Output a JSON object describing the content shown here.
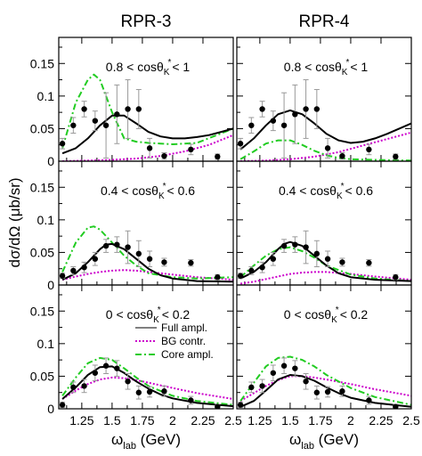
{
  "figure": {
    "column_titles": [
      "RPR-3",
      "RPR-4"
    ],
    "ylabel": "dσ/dΩ (μb/sr)",
    "xlabel_main": "ω",
    "xlabel_sub": "lab",
    "xlabel_unit": " (GeV)",
    "x_tick_labels": [
      "1.25",
      "1.5",
      "1.75",
      "2",
      "2.25",
      "2.5"
    ],
    "y_tick_labels": [
      [
        "0",
        "0.05",
        "0.1",
        "0.15"
      ],
      [
        "0",
        "0.05",
        "0.1",
        "0.15"
      ],
      [
        "0",
        "0.05",
        "0.1",
        "0.15"
      ]
    ],
    "row_labels": [
      {
        "prefix": "0.8 < cosθ",
        "sub": "K",
        "sup": "*",
        "suffix": "< 1"
      },
      {
        "prefix": "0.4 < cosθ",
        "sub": "K",
        "sup": "*",
        "suffix": "< 0.6"
      },
      {
        "prefix": "0 < cosθ",
        "sub": "K",
        "sup": "*",
        "suffix": "< 0.2"
      }
    ],
    "legend": [
      "Full ampl.",
      "BG contr.",
      "Core ampl."
    ],
    "colors": {
      "full": "#000000",
      "bg": "#cc00cc",
      "core": "#22cc22",
      "data": "#000000",
      "errorbar": "#999999"
    }
  },
  "chart_data": {
    "type": "line",
    "x_range": [
      1.06,
      2.5
    ],
    "y_range": [
      0,
      0.19
    ],
    "data_points": [
      {
        "x": [
          1.09,
          1.18,
          1.27,
          1.36,
          1.45,
          1.54,
          1.63,
          1.72,
          1.81,
          1.93,
          2.15,
          2.37
        ],
        "y": [
          0.027,
          0.055,
          0.08,
          0.062,
          0.055,
          0.072,
          0.08,
          0.08,
          0.02,
          0.008,
          0.018,
          0.007
        ],
        "err": [
          0.008,
          0.012,
          0.012,
          0.015,
          0.05,
          0.045,
          0.045,
          0.03,
          0.015,
          0.005,
          0.008,
          0.004
        ]
      },
      {
        "x": [
          1.09,
          1.18,
          1.27,
          1.36,
          1.45,
          1.54,
          1.63,
          1.72,
          1.81,
          1.93,
          2.15,
          2.37
        ],
        "y": [
          0.014,
          0.022,
          0.027,
          0.04,
          0.06,
          0.062,
          0.058,
          0.048,
          0.04,
          0.035,
          0.034,
          0.012
        ],
        "err": [
          0.004,
          0.006,
          0.008,
          0.01,
          0.01,
          0.012,
          0.025,
          0.02,
          0.012,
          0.006,
          0.005,
          0.004
        ]
      },
      {
        "x": [
          1.09,
          1.18,
          1.27,
          1.36,
          1.45,
          1.54,
          1.63,
          1.72,
          1.81,
          1.93,
          2.15,
          2.37
        ],
        "y": [
          0.006,
          0.033,
          0.035,
          0.055,
          0.066,
          0.062,
          0.042,
          0.025,
          0.026,
          0.027,
          0.013,
          0.003
        ],
        "err": [
          0.004,
          0.008,
          0.01,
          0.012,
          0.012,
          0.012,
          0.012,
          0.01,
          0.008,
          0.008,
          0.006,
          0.004
        ]
      }
    ],
    "model_curves": [
      [
        {
          "name": "Full ampl.",
          "x": [
            1.09,
            1.2,
            1.3,
            1.4,
            1.5,
            1.6,
            1.7,
            1.8,
            1.9,
            2.0,
            2.1,
            2.2,
            2.3,
            2.4,
            2.5
          ],
          "y": [
            0.012,
            0.02,
            0.035,
            0.055,
            0.07,
            0.07,
            0.058,
            0.045,
            0.038,
            0.035,
            0.035,
            0.037,
            0.04,
            0.045,
            0.05
          ]
        },
        {
          "name": "BG contr.",
          "x": [
            1.09,
            1.3,
            1.5,
            1.7,
            1.9,
            2.1,
            2.3,
            2.5
          ],
          "y": [
            0.0,
            0.001,
            0.002,
            0.004,
            0.008,
            0.015,
            0.025,
            0.04
          ]
        },
        {
          "name": "Core ampl.",
          "x": [
            1.09,
            1.2,
            1.3,
            1.35,
            1.4,
            1.5,
            1.6,
            1.7,
            1.8,
            1.9,
            2.0,
            2.2,
            2.5
          ],
          "y": [
            0.02,
            0.09,
            0.125,
            0.133,
            0.125,
            0.075,
            0.035,
            0.03,
            0.028,
            0.027,
            0.026,
            0.028,
            0.05
          ]
        }
      ],
      [
        {
          "name": "Full ampl.",
          "x": [
            1.09,
            1.2,
            1.3,
            1.4,
            1.45,
            1.5,
            1.6,
            1.7,
            1.8,
            1.9,
            2.0,
            2.2,
            2.5
          ],
          "y": [
            0.008,
            0.018,
            0.035,
            0.055,
            0.062,
            0.063,
            0.055,
            0.04,
            0.025,
            0.015,
            0.01,
            0.006,
            0.005
          ]
        },
        {
          "name": "BG contr.",
          "x": [
            1.09,
            1.2,
            1.3,
            1.4,
            1.5,
            1.6,
            1.7,
            1.8,
            2.0,
            2.2,
            2.5
          ],
          "y": [
            0.008,
            0.013,
            0.017,
            0.02,
            0.022,
            0.023,
            0.022,
            0.02,
            0.016,
            0.012,
            0.008
          ]
        },
        {
          "name": "Core ampl.",
          "x": [
            1.09,
            1.2,
            1.3,
            1.35,
            1.4,
            1.5,
            1.6,
            1.7,
            1.8,
            2.0,
            2.2,
            2.5
          ],
          "y": [
            0.02,
            0.065,
            0.088,
            0.09,
            0.085,
            0.065,
            0.045,
            0.03,
            0.018,
            0.012,
            0.01,
            0.012
          ]
        }
      ],
      [
        {
          "name": "Full ampl.",
          "x": [
            1.09,
            1.2,
            1.3,
            1.4,
            1.5,
            1.6,
            1.7,
            1.8,
            1.9,
            2.0,
            2.2,
            2.5
          ],
          "y": [
            0.015,
            0.033,
            0.052,
            0.064,
            0.065,
            0.055,
            0.042,
            0.031,
            0.022,
            0.016,
            0.009,
            0.004
          ]
        },
        {
          "name": "BG contr.",
          "x": [
            1.09,
            1.2,
            1.3,
            1.4,
            1.5,
            1.6,
            1.7,
            1.8,
            2.0,
            2.2,
            2.5
          ],
          "y": [
            0.015,
            0.028,
            0.038,
            0.045,
            0.048,
            0.047,
            0.044,
            0.04,
            0.032,
            0.024,
            0.015
          ]
        },
        {
          "name": "Core ampl.",
          "x": [
            1.09,
            1.2,
            1.3,
            1.4,
            1.5,
            1.6,
            1.7,
            1.8,
            2.0,
            2.2,
            2.5
          ],
          "y": [
            0.02,
            0.048,
            0.07,
            0.078,
            0.075,
            0.062,
            0.048,
            0.035,
            0.02,
            0.012,
            0.006
          ]
        }
      ],
      [
        {
          "name": "Full ampl.",
          "x": [
            1.09,
            1.2,
            1.3,
            1.4,
            1.5,
            1.6,
            1.7,
            1.8,
            1.9,
            2.0,
            2.1,
            2.2,
            2.3,
            2.4,
            2.5
          ],
          "y": [
            0.018,
            0.035,
            0.055,
            0.072,
            0.078,
            0.072,
            0.058,
            0.042,
            0.032,
            0.028,
            0.03,
            0.035,
            0.042,
            0.05,
            0.058
          ]
        },
        {
          "name": "BG contr.",
          "x": [
            1.09,
            1.3,
            1.5,
            1.7,
            1.9,
            2.1,
            2.3,
            2.5
          ],
          "y": [
            0.0,
            0.001,
            0.003,
            0.007,
            0.014,
            0.024,
            0.034,
            0.044
          ]
        },
        {
          "name": "Core ampl.",
          "x": [
            1.09,
            1.2,
            1.3,
            1.4,
            1.5,
            1.6,
            1.7,
            1.8,
            1.9,
            2.0,
            2.2,
            2.5
          ],
          "y": [
            0.003,
            0.015,
            0.027,
            0.032,
            0.032,
            0.025,
            0.016,
            0.009,
            0.005,
            0.003,
            0.002,
            0.001
          ]
        }
      ],
      [
        {
          "name": "Full ampl.",
          "x": [
            1.09,
            1.2,
            1.3,
            1.4,
            1.45,
            1.5,
            1.6,
            1.7,
            1.8,
            1.9,
            2.0,
            2.2,
            2.5
          ],
          "y": [
            0.01,
            0.02,
            0.035,
            0.055,
            0.063,
            0.066,
            0.06,
            0.045,
            0.03,
            0.018,
            0.012,
            0.008,
            0.006
          ]
        },
        {
          "name": "BG contr.",
          "x": [
            1.09,
            1.2,
            1.3,
            1.4,
            1.5,
            1.6,
            1.7,
            1.8,
            2.0,
            2.2,
            2.5
          ],
          "y": [
            0.002,
            0.005,
            0.009,
            0.013,
            0.017,
            0.019,
            0.02,
            0.02,
            0.017,
            0.013,
            0.008
          ]
        },
        {
          "name": "Core ampl.",
          "x": [
            1.09,
            1.2,
            1.3,
            1.4,
            1.5,
            1.6,
            1.7,
            1.8,
            2.0,
            2.2,
            2.5
          ],
          "y": [
            0.012,
            0.03,
            0.045,
            0.055,
            0.058,
            0.052,
            0.042,
            0.03,
            0.016,
            0.01,
            0.006
          ]
        }
      ],
      [
        {
          "name": "Full ampl.",
          "x": [
            1.09,
            1.2,
            1.3,
            1.4,
            1.5,
            1.6,
            1.7,
            1.8,
            1.9,
            2.0,
            2.2,
            2.5
          ],
          "y": [
            0.003,
            0.012,
            0.028,
            0.045,
            0.052,
            0.05,
            0.043,
            0.033,
            0.024,
            0.017,
            0.009,
            0.003
          ]
        },
        {
          "name": "BG contr.",
          "x": [
            1.09,
            1.2,
            1.3,
            1.4,
            1.5,
            1.6,
            1.7,
            1.8,
            2.0,
            2.2,
            2.5
          ],
          "y": [
            0.012,
            0.024,
            0.035,
            0.044,
            0.05,
            0.05,
            0.048,
            0.045,
            0.038,
            0.03,
            0.02
          ]
        },
        {
          "name": "Core ampl.",
          "x": [
            1.09,
            1.2,
            1.3,
            1.4,
            1.5,
            1.6,
            1.7,
            1.8,
            2.0,
            2.2,
            2.5
          ],
          "y": [
            0.012,
            0.04,
            0.065,
            0.078,
            0.08,
            0.075,
            0.065,
            0.052,
            0.032,
            0.018,
            0.006
          ]
        }
      ]
    ]
  }
}
